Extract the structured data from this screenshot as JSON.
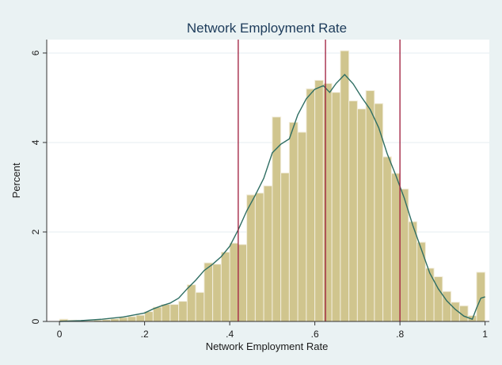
{
  "chart_data": {
    "type": "bar",
    "title": "Network Employment Rate",
    "xlabel": "Network Employment Rate",
    "ylabel": "Percent",
    "xlim": [
      -0.03,
      1.01
    ],
    "ylim": [
      0,
      6.3
    ],
    "x_ticks": [
      {
        "value": 0,
        "label": "0"
      },
      {
        "value": 0.2,
        "label": ".2"
      },
      {
        "value": 0.4,
        "label": ".4"
      },
      {
        "value": 0.6,
        "label": ".6"
      },
      {
        "value": 0.8,
        "label": ".8"
      },
      {
        "value": 1,
        "label": "1"
      }
    ],
    "y_ticks": [
      {
        "value": 0,
        "label": "0"
      },
      {
        "value": 2,
        "label": "2"
      },
      {
        "value": 4,
        "label": "4"
      },
      {
        "value": 6,
        "label": "6"
      }
    ],
    "grid": "horizontal",
    "bin_width": 0.02,
    "bins": [
      {
        "x": 0.0,
        "y": 0.05
      },
      {
        "x": 0.02,
        "y": 0.03
      },
      {
        "x": 0.04,
        "y": 0.02
      },
      {
        "x": 0.06,
        "y": 0.02
      },
      {
        "x": 0.08,
        "y": 0.03
      },
      {
        "x": 0.1,
        "y": 0.04
      },
      {
        "x": 0.12,
        "y": 0.06
      },
      {
        "x": 0.14,
        "y": 0.09
      },
      {
        "x": 0.16,
        "y": 0.11
      },
      {
        "x": 0.18,
        "y": 0.14
      },
      {
        "x": 0.2,
        "y": 0.22
      },
      {
        "x": 0.22,
        "y": 0.32
      },
      {
        "x": 0.24,
        "y": 0.38
      },
      {
        "x": 0.26,
        "y": 0.38
      },
      {
        "x": 0.28,
        "y": 0.45
      },
      {
        "x": 0.3,
        "y": 0.82
      },
      {
        "x": 0.32,
        "y": 0.65
      },
      {
        "x": 0.34,
        "y": 1.31
      },
      {
        "x": 0.36,
        "y": 1.28
      },
      {
        "x": 0.38,
        "y": 1.55
      },
      {
        "x": 0.4,
        "y": 1.75
      },
      {
        "x": 0.42,
        "y": 1.72
      },
      {
        "x": 0.44,
        "y": 2.83
      },
      {
        "x": 0.46,
        "y": 2.87
      },
      {
        "x": 0.48,
        "y": 3.03
      },
      {
        "x": 0.5,
        "y": 4.57
      },
      {
        "x": 0.52,
        "y": 3.32
      },
      {
        "x": 0.54,
        "y": 4.45
      },
      {
        "x": 0.56,
        "y": 4.23
      },
      {
        "x": 0.58,
        "y": 5.2
      },
      {
        "x": 0.6,
        "y": 5.39
      },
      {
        "x": 0.62,
        "y": 5.32
      },
      {
        "x": 0.64,
        "y": 5.12
      },
      {
        "x": 0.66,
        "y": 6.05
      },
      {
        "x": 0.68,
        "y": 4.93
      },
      {
        "x": 0.7,
        "y": 4.75
      },
      {
        "x": 0.72,
        "y": 5.16
      },
      {
        "x": 0.74,
        "y": 4.87
      },
      {
        "x": 0.76,
        "y": 3.68
      },
      {
        "x": 0.78,
        "y": 3.31
      },
      {
        "x": 0.8,
        "y": 2.96
      },
      {
        "x": 0.82,
        "y": 2.23
      },
      {
        "x": 0.84,
        "y": 1.77
      },
      {
        "x": 0.86,
        "y": 1.19
      },
      {
        "x": 0.88,
        "y": 1.0
      },
      {
        "x": 0.9,
        "y": 0.67
      },
      {
        "x": 0.92,
        "y": 0.43
      },
      {
        "x": 0.94,
        "y": 0.35
      },
      {
        "x": 0.96,
        "y": 0.13
      },
      {
        "x": 0.98,
        "y": 1.1
      }
    ],
    "density_curve": [
      [
        0.0,
        0.0
      ],
      [
        0.05,
        0.02
      ],
      [
        0.1,
        0.05
      ],
      [
        0.15,
        0.1
      ],
      [
        0.2,
        0.19
      ],
      [
        0.22,
        0.28
      ],
      [
        0.24,
        0.35
      ],
      [
        0.26,
        0.41
      ],
      [
        0.28,
        0.52
      ],
      [
        0.3,
        0.73
      ],
      [
        0.32,
        0.92
      ],
      [
        0.34,
        1.14
      ],
      [
        0.36,
        1.28
      ],
      [
        0.38,
        1.45
      ],
      [
        0.4,
        1.68
      ],
      [
        0.42,
        2.05
      ],
      [
        0.44,
        2.47
      ],
      [
        0.46,
        2.82
      ],
      [
        0.48,
        3.2
      ],
      [
        0.5,
        3.77
      ],
      [
        0.52,
        3.96
      ],
      [
        0.54,
        4.08
      ],
      [
        0.56,
        4.62
      ],
      [
        0.58,
        4.98
      ],
      [
        0.6,
        5.19
      ],
      [
        0.62,
        5.27
      ],
      [
        0.635,
        5.12
      ],
      [
        0.65,
        5.32
      ],
      [
        0.67,
        5.52
      ],
      [
        0.69,
        5.31
      ],
      [
        0.71,
        5.01
      ],
      [
        0.73,
        4.74
      ],
      [
        0.75,
        4.33
      ],
      [
        0.77,
        3.75
      ],
      [
        0.79,
        3.27
      ],
      [
        0.81,
        2.76
      ],
      [
        0.83,
        2.15
      ],
      [
        0.85,
        1.62
      ],
      [
        0.87,
        1.08
      ],
      [
        0.89,
        0.73
      ],
      [
        0.91,
        0.46
      ],
      [
        0.93,
        0.27
      ],
      [
        0.95,
        0.12
      ],
      [
        0.97,
        0.05
      ],
      [
        0.98,
        0.3
      ],
      [
        0.99,
        0.52
      ],
      [
        1.0,
        0.55
      ]
    ],
    "reference_lines": [
      0.42,
      0.625,
      0.8
    ],
    "colors": {
      "bar_fill": "#d0c58e",
      "bar_stroke": "#f2eddc",
      "curve": "#2f6e63",
      "reference_line": "#9e1a3a",
      "outer_background": "#eaf2f3",
      "plot_background": "#ffffff",
      "grid": "#e6eef0",
      "title": "#1c3b5a"
    }
  }
}
